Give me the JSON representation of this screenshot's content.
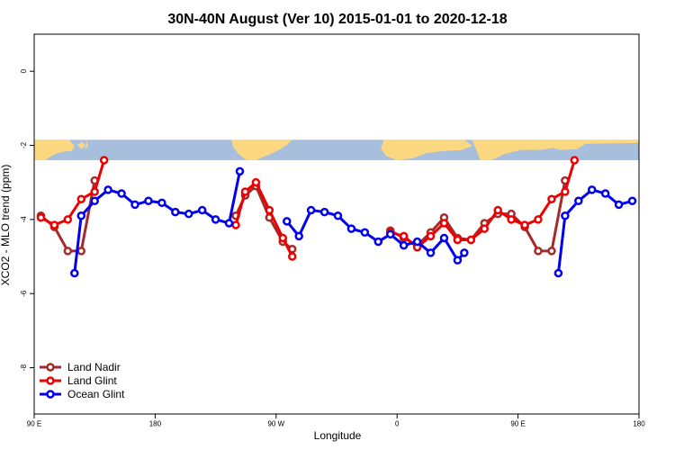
{
  "chart_data": {
    "type": "line",
    "title": "30N-40N August (Ver 10)   2015-01-01 to 2020-12-18",
    "xlabel": "Longitude",
    "ylabel": "XCO2 - MLO trend (ppm)",
    "xlim": [
      0,
      450
    ],
    "ylim": [
      -9.25,
      1.0
    ],
    "x_ticks": [
      {
        "value": 0,
        "label": "90 E"
      },
      {
        "value": 90,
        "label": "180"
      },
      {
        "value": 180,
        "label": "90 W"
      },
      {
        "value": 270,
        "label": "0"
      },
      {
        "value": 360,
        "label": "90 E"
      },
      {
        "value": 450,
        "label": "180"
      }
    ],
    "y_ticks": [
      {
        "value": 0,
        "label": "0"
      },
      {
        "value": -2,
        "label": "-2"
      },
      {
        "value": -4,
        "label": "-4"
      },
      {
        "value": -6,
        "label": "-6"
      },
      {
        "value": -8,
        "label": "-8"
      }
    ],
    "map_band": {
      "y_top": -1.85,
      "y_bottom": -2.4,
      "land_color": "#FBD87F",
      "ocean_color": "#A7BFDD"
    },
    "legend_position": "bottom-left",
    "series": [
      {
        "name": "Land Nadir",
        "color": "#A52A2A",
        "segments": [
          [
            [
              5,
              -3.9
            ],
            [
              15,
              -4.2
            ],
            [
              25,
              -4.85
            ],
            [
              35,
              -4.85
            ],
            [
              45,
              -2.95
            ]
          ],
          [
            [
              150,
              -3.9
            ],
            [
              157,
              -3.35
            ],
            [
              165,
              -3.1
            ],
            [
              175,
              -3.95
            ],
            [
              185,
              -4.6
            ],
            [
              192,
              -4.8
            ]
          ],
          [
            [
              265,
              -4.3
            ],
            [
              275,
              -4.5
            ],
            [
              285,
              -4.7
            ],
            [
              295,
              -4.35
            ],
            [
              305,
              -3.95
            ],
            [
              315,
              -4.5
            ],
            [
              325,
              -4.55
            ],
            [
              335,
              -4.1
            ],
            [
              345,
              -3.85
            ],
            [
              355,
              -3.85
            ],
            [
              365,
              -4.2
            ],
            [
              375,
              -4.85
            ],
            [
              385,
              -4.85
            ],
            [
              395,
              -2.95
            ]
          ]
        ]
      },
      {
        "name": "Land Glint",
        "color": "#EE0000",
        "segments": [
          [
            [
              5,
              -3.95
            ],
            [
              15,
              -4.15
            ],
            [
              25,
              -4.0
            ],
            [
              35,
              -3.45
            ],
            [
              45,
              -3.25
            ],
            [
              52,
              -2.4
            ]
          ],
          [
            [
              150,
              -4.15
            ],
            [
              157,
              -3.25
            ],
            [
              165,
              -3.0
            ],
            [
              175,
              -3.75
            ],
            [
              185,
              -4.5
            ],
            [
              192,
              -5.0
            ]
          ],
          [
            [
              265,
              -4.35
            ],
            [
              275,
              -4.45
            ],
            [
              285,
              -4.75
            ],
            [
              295,
              -4.45
            ],
            [
              305,
              -4.1
            ],
            [
              315,
              -4.55
            ],
            [
              325,
              -4.55
            ],
            [
              335,
              -4.25
            ],
            [
              345,
              -3.75
            ],
            [
              355,
              -4.0
            ],
            [
              365,
              -4.15
            ],
            [
              375,
              -4.0
            ],
            [
              385,
              -3.45
            ],
            [
              395,
              -3.25
            ],
            [
              402,
              -2.4
            ]
          ]
        ]
      },
      {
        "name": "Ocean Glint",
        "color": "#0000EE",
        "segments": [
          [
            [
              30,
              -5.45
            ],
            [
              35,
              -3.9
            ],
            [
              45,
              -3.5
            ],
            [
              55,
              -3.2
            ],
            [
              65,
              -3.3
            ],
            [
              75,
              -3.6
            ],
            [
              85,
              -3.5
            ],
            [
              95,
              -3.55
            ],
            [
              105,
              -3.8
            ],
            [
              115,
              -3.85
            ],
            [
              125,
              -3.75
            ],
            [
              135,
              -4.0
            ],
            [
              145,
              -4.1
            ],
            [
              153,
              -2.7
            ]
          ],
          [
            [
              188,
              -4.05
            ],
            [
              197,
              -4.45
            ],
            [
              206,
              -3.75
            ],
            [
              216,
              -3.8
            ],
            [
              226,
              -3.9
            ],
            [
              236,
              -4.25
            ],
            [
              246,
              -4.35
            ],
            [
              256,
              -4.6
            ],
            [
              265,
              -4.4
            ],
            [
              275,
              -4.7
            ],
            [
              285,
              -4.6
            ],
            [
              295,
              -4.9
            ],
            [
              305,
              -4.5
            ],
            [
              315,
              -5.1
            ],
            [
              320,
              -4.9
            ]
          ],
          [
            [
              390,
              -5.45
            ],
            [
              395,
              -3.9
            ],
            [
              405,
              -3.5
            ],
            [
              415,
              -3.2
            ],
            [
              425,
              -3.3
            ],
            [
              435,
              -3.6
            ],
            [
              445,
              -3.5
            ]
          ]
        ]
      }
    ]
  }
}
